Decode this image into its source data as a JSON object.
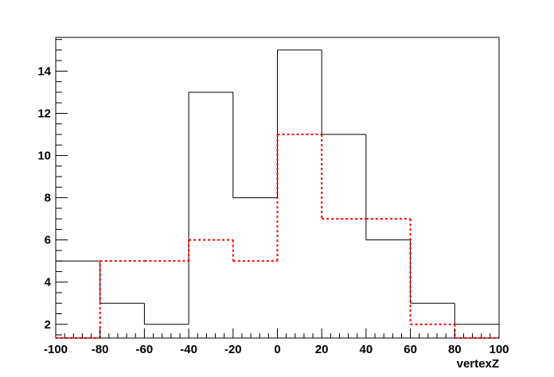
{
  "chart_data": {
    "type": "histogram",
    "title": "",
    "xlabel": "vertexZ",
    "ylabel": "",
    "xlim": [
      -100,
      100
    ],
    "ylim": [
      1.35,
      15.6
    ],
    "bin_edges": [
      -100,
      -80,
      -60,
      -40,
      -20,
      0,
      20,
      40,
      60,
      80,
      100
    ],
    "x_ticks": [
      -100,
      -80,
      -60,
      -40,
      -20,
      0,
      20,
      40,
      60,
      80,
      100
    ],
    "x_tick_labels": [
      "-100",
      "-80",
      "-60",
      "-40",
      "-20",
      "0",
      "20",
      "40",
      "60",
      "80",
      "100"
    ],
    "y_ticks": [
      2,
      4,
      6,
      8,
      10,
      12,
      14
    ],
    "y_tick_labels": [
      "2",
      "4",
      "6",
      "8",
      "10",
      "12",
      "14"
    ],
    "grid": false,
    "legend": "none",
    "series": [
      {
        "values": [
          5,
          3,
          2,
          13,
          8,
          15,
          11,
          6,
          3,
          2
        ],
        "color": "#000000",
        "line_style": "solid"
      },
      {
        "values": [
          1,
          5,
          5,
          6,
          5,
          11,
          7,
          7,
          2,
          1
        ],
        "color": "#ff0000",
        "line_style": "dotted"
      }
    ]
  }
}
